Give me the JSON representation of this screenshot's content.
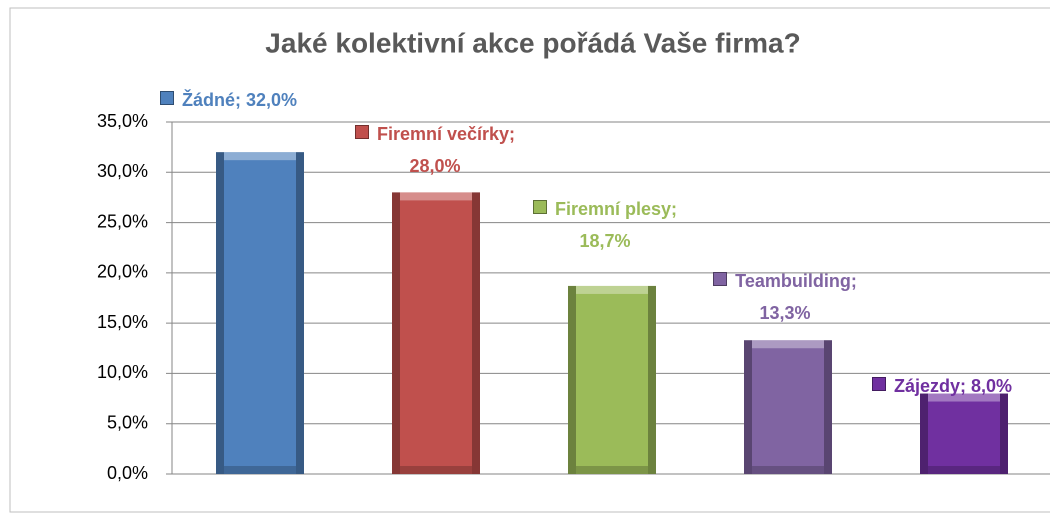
{
  "chart_data": {
    "type": "bar",
    "title": "Jaké kolektivní akce pořádá Vaše firma?",
    "categories": [
      "Žádné",
      "Firemní večírky",
      "Firemní plesy",
      "Teambuilding",
      "Zájezdy"
    ],
    "values": [
      32,
      28,
      18.7,
      13.3,
      8
    ],
    "value_labels": [
      "Žádné; 32,0%",
      "Firemní večírky; 28,0%",
      "Firemní plesy; 18,7%",
      "Teambuilding; 13,3%",
      "Zájezdy; 8,0%"
    ],
    "colors": [
      "#4f81bd",
      "#c0504d",
      "#9bbb59",
      "#8064a2",
      "#7030a0"
    ],
    "ylim": [
      0,
      35
    ],
    "yticks": [
      {
        "value": 0,
        "label": "0,0%"
      },
      {
        "value": 5,
        "label": "5,0%"
      },
      {
        "value": 10,
        "label": "10,0%"
      },
      {
        "value": 15,
        "label": "15,0%"
      },
      {
        "value": 20,
        "label": "20,0%"
      },
      {
        "value": 25,
        "label": "25,0%"
      },
      {
        "value": 30,
        "label": "30,0%"
      },
      {
        "value": 35,
        "label": "35,0%"
      }
    ],
    "grid": true
  }
}
